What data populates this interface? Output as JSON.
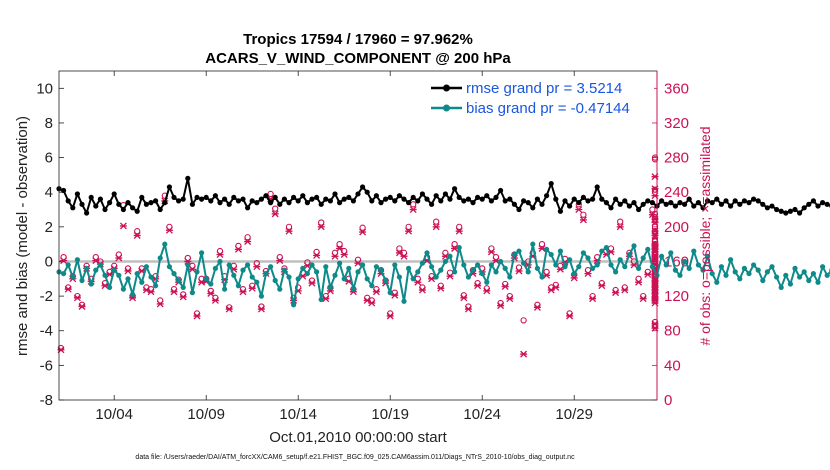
{
  "chart_data": {
    "type": "line",
    "title": "Tropics 17594 / 17960 = 97.962%",
    "subtitle": "ACARS_V_WIND_COMPONENT @ 200 hPa",
    "xlabel": "Oct.01,2010 00:00:00 start",
    "ylabel": "rmse and bias (model - observation)",
    "ylabel_right": "# of obs: o=possible; ×=assimilated",
    "footer": "data file: /Users/raeder/DAI/ATM_forcXX/CAM6_setup/f.e21.FHIST_BGC.f09_025.CAM6assim.011/Diags_NTrS_2010-10/obs_diag_output.nc",
    "xlim": [
      1,
      33.5
    ],
    "ylim": [
      -8,
      11
    ],
    "ylim_right": [
      0,
      380
    ],
    "x_ticks": [
      4,
      9,
      14,
      19,
      24,
      29
    ],
    "x_tick_labels": [
      "10/04",
      "10/09",
      "10/14",
      "10/19",
      "10/24",
      "10/29"
    ],
    "y_ticks": [
      -8,
      -6,
      -4,
      -2,
      0,
      2,
      4,
      6,
      8,
      10
    ],
    "y_ticks_right": [
      0,
      40,
      80,
      120,
      160,
      200,
      240,
      280,
      320,
      360
    ],
    "x_start": 1,
    "x_step": 0.25,
    "series": [
      {
        "name": "rmse grand pr = 3.5214",
        "axis": "left",
        "color": "#000000",
        "marker": "dot",
        "values": [
          4.2,
          4.1,
          3.5,
          3.1,
          3.9,
          3.3,
          2.8,
          3.7,
          3.2,
          3.6,
          3.0,
          3.4,
          3.9,
          3.3,
          3.0,
          3.4,
          3.1,
          2.9,
          3.7,
          3.3,
          3.4,
          3.5,
          3.0,
          3.4,
          4.3,
          3.7,
          3.5,
          3.6,
          4.8,
          3.3,
          3.7,
          3.6,
          3.7,
          3.5,
          3.8,
          3.4,
          3.6,
          3.3,
          3.7,
          3.5,
          3.6,
          3.1,
          3.5,
          3.4,
          3.6,
          3.8,
          3.4,
          3.7,
          3.3,
          3.6,
          3.4,
          3.7,
          3.5,
          3.8,
          3.4,
          3.6,
          3.7,
          3.3,
          3.6,
          3.5,
          3.9,
          3.4,
          3.6,
          3.7,
          3.5,
          3.9,
          4.3,
          4.0,
          3.5,
          3.8,
          3.4,
          3.6,
          3.7,
          3.5,
          3.8,
          3.6,
          3.4,
          3.7,
          3.5,
          3.9,
          3.6,
          3.3,
          3.8,
          3.5,
          3.9,
          3.6,
          4.2,
          3.7,
          3.5,
          3.6,
          3.4,
          3.7,
          3.6,
          3.8,
          3.5,
          3.7,
          4.1,
          3.5,
          3.6,
          3.3,
          3.0,
          3.5,
          3.4,
          3.1,
          3.6,
          3.3,
          3.8,
          4.5,
          3.6,
          2.9,
          3.5,
          3.2,
          3.6,
          3.4,
          3.7,
          3.5,
          3.6,
          4.3,
          3.6,
          3.4,
          3.1,
          3.6,
          3.3,
          3.5,
          3.2,
          3.4,
          3.0,
          3.3,
          3.5,
          3.4,
          3.2,
          3.5,
          3.3,
          3.4,
          3.2,
          3.4,
          3.3,
          3.6,
          3.2,
          3.4,
          3.1,
          3.5,
          3.4,
          3.6,
          3.3,
          3.5,
          3.2,
          3.5,
          3.3,
          3.5,
          3.4,
          3.6,
          3.5,
          3.3,
          3.1,
          3.2,
          3.0,
          2.9,
          2.8,
          2.9,
          3.0,
          2.8,
          3.1,
          3.3,
          3.5,
          3.2,
          3.4,
          3.3,
          3.2,
          3.0,
          3.4,
          3.3,
          3.5,
          3.8,
          3.2,
          3.5,
          3.7,
          4.3,
          3.5,
          3.6,
          3.4,
          3.7,
          3.5,
          4.4,
          3.6,
          3.4,
          3.5
        ]
      },
      {
        "name": "bias grand pr = -0.47144",
        "axis": "left",
        "color": "#0e8a8a",
        "marker": "dot",
        "values": [
          -0.6,
          -0.7,
          -0.2,
          -0.9,
          0.1,
          -1.1,
          -0.4,
          -1.3,
          -0.5,
          -0.2,
          -0.8,
          -1.5,
          -0.5,
          -0.8,
          -1.6,
          -1.0,
          -1.9,
          -0.7,
          -1.2,
          -0.3,
          -0.9,
          -1.4,
          0.2,
          1.0,
          -0.3,
          -0.7,
          -1.1,
          -1.5,
          -0.2,
          -1.8,
          -0.6,
          0.5,
          -1.0,
          -1.3,
          -0.4,
          0.0,
          -1.6,
          -0.2,
          -0.8,
          -1.4,
          -0.5,
          -0.2,
          -0.9,
          -1.2,
          -2.0,
          -0.7,
          -0.3,
          -1.1,
          -1.6,
          -0.5,
          -0.9,
          -2.5,
          -1.0,
          -0.4,
          -0.7,
          -0.2,
          -0.6,
          -2.2,
          -0.3,
          -1.5,
          -0.8,
          -0.1,
          -1.0,
          -0.4,
          -1.6,
          -0.6,
          -0.2,
          -1.0,
          -1.4,
          -0.3,
          -0.5,
          -1.1,
          -1.8,
          -0.2,
          -0.9,
          -2.3,
          -0.4,
          -1.0,
          -0.6,
          -0.1,
          0.5,
          -0.3,
          -0.9,
          -0.5,
          0.0,
          0.3,
          -0.6,
          0.8,
          -0.2,
          -0.9,
          -0.5,
          -0.2,
          -0.7,
          -1.2,
          -0.2,
          -0.6,
          0.0,
          -0.4,
          -0.9,
          0.4,
          0.6,
          -0.1,
          -0.6,
          1.0,
          -0.4,
          -0.9,
          0.7,
          0.4,
          -0.2,
          0.6,
          -0.3,
          0.1,
          -0.7,
          -0.3,
          0.5,
          0.2,
          -0.4,
          -0.2,
          0.6,
          0.8,
          -0.2,
          -0.6,
          0.1,
          -0.3,
          0.4,
          0.9,
          -0.4,
          0.2,
          0.7,
          -0.3,
          -0.8,
          0.3,
          -0.2,
          0.5,
          -0.5,
          -0.8,
          0.0,
          -0.4,
          0.6,
          -0.2,
          -0.5,
          0.3,
          -0.7,
          -1.2,
          -0.3,
          -0.8,
          0.1,
          -0.6,
          -1.0,
          -0.4,
          -0.7,
          -0.2,
          -0.5,
          -1.1,
          -0.6,
          -0.3,
          -0.9,
          -1.5,
          -0.8,
          -1.3,
          -0.4,
          -0.9,
          -0.6,
          -1.1,
          -0.7,
          -1.2,
          -0.3,
          -0.8,
          -0.5,
          -1.4,
          -0.2,
          -1.0,
          -0.6,
          -1.3,
          -0.4,
          -0.9,
          -1.2,
          -0.5,
          -1.0,
          -0.4,
          -0.7,
          -0.6
        ]
      },
      {
        "name": "possible obs count",
        "axis": "right",
        "color": "#cc1155",
        "marker": "circle",
        "values": [
          60,
          165,
          130,
          143,
          120,
          110,
          155,
          140,
          165,
          160,
          135,
          148,
          155,
          168,
          225,
          152,
          120,
          195,
          152,
          130,
          128,
          143,
          115,
          236,
          200,
          128,
          139,
          122,
          164,
          155,
          100,
          140,
          140,
          126,
          118,
          172,
          143,
          107,
          155,
          178,
          128,
          188,
          132,
          158,
          108,
          149,
          238,
          221,
          165,
          152,
          200,
          118,
          130,
          147,
          159,
          138,
          171,
          205,
          120,
          130,
          170,
          180,
          172,
          140,
          128,
          162,
          199,
          118,
          115,
          128,
          150,
          138,
          100,
          124,
          175,
          170,
          200,
          226,
          140,
          130,
          165,
          143,
          206,
          132,
          170,
          147,
          180,
          200,
          121,
          108,
          150,
          135,
          152,
          129,
          175,
          165,
          112,
          134,
          120,
          168,
          153,
          92,
          160,
          170,
          110,
          180,
          148,
          130,
          133,
          155,
          163,
          100,
          145,
          226,
          214,
          150,
          120,
          165,
          135,
          172,
          175,
          127,
          206,
          130,
          170,
          160,
          140,
          120,
          148,
          220,
          130,
          155,
          211,
          175,
          135,
          175,
          160,
          126,
          195,
          165,
          145,
          85,
          180,
          160,
          130,
          175,
          175,
          160,
          122,
          145,
          168,
          278,
          120,
          150,
          165,
          185,
          145,
          90,
          195,
          130,
          180,
          150,
          168,
          139,
          243,
          115,
          170,
          145,
          130,
          179,
          155,
          183,
          133,
          280,
          150,
          178,
          142,
          130,
          170,
          140,
          215,
          150,
          184,
          165,
          155,
          170,
          200,
          165,
          118,
          145
        ]
      },
      {
        "name": "assimilated obs count",
        "axis": "right",
        "color": "#cc1155",
        "marker": "x",
        "values": [
          58,
          161,
          128,
          140,
          118,
          108,
          152,
          137,
          161,
          157,
          132,
          145,
          152,
          164,
          201,
          149,
          118,
          190,
          149,
          127,
          125,
          140,
          111,
          230,
          196,
          125,
          136,
          119,
          160,
          151,
          97,
          136,
          137,
          123,
          115,
          168,
          139,
          105,
          151,
          174,
          125,
          183,
          129,
          154,
          105,
          146,
          232,
          215,
          161,
          148,
          195,
          115,
          126,
          143,
          155,
          135,
          167,
          200,
          117,
          126,
          166,
          175,
          168,
          137,
          125,
          158,
          194,
          115,
          112,
          125,
          146,
          135,
          97,
          121,
          170,
          166,
          195,
          220,
          136,
          127,
          161,
          140,
          200,
          129,
          166,
          143,
          175,
          195,
          118,
          105,
          146,
          132,
          148,
          126,
          171,
          161,
          109,
          131,
          117,
          164,
          149,
          53,
          156,
          166,
          107,
          175,
          144,
          127,
          130,
          151,
          159,
          97,
          141,
          220,
          208,
          146,
          117,
          161,
          132,
          168,
          171,
          124,
          200,
          127,
          166,
          156,
          136,
          117,
          145,
          214,
          127,
          151,
          205,
          171,
          132,
          171,
          156,
          123,
          190,
          161,
          141,
          83,
          175,
          156,
          127,
          171,
          171,
          156,
          119,
          141,
          164,
          258,
          117,
          146,
          161,
          180,
          141,
          88,
          190,
          127,
          175,
          146,
          164,
          135,
          236,
          112,
          166,
          141,
          127,
          174,
          151,
          178,
          130,
          244,
          146,
          174,
          138,
          127,
          166,
          137,
          209,
          146,
          179,
          161,
          151,
          166,
          195,
          161,
          115,
          141
        ]
      }
    ]
  }
}
